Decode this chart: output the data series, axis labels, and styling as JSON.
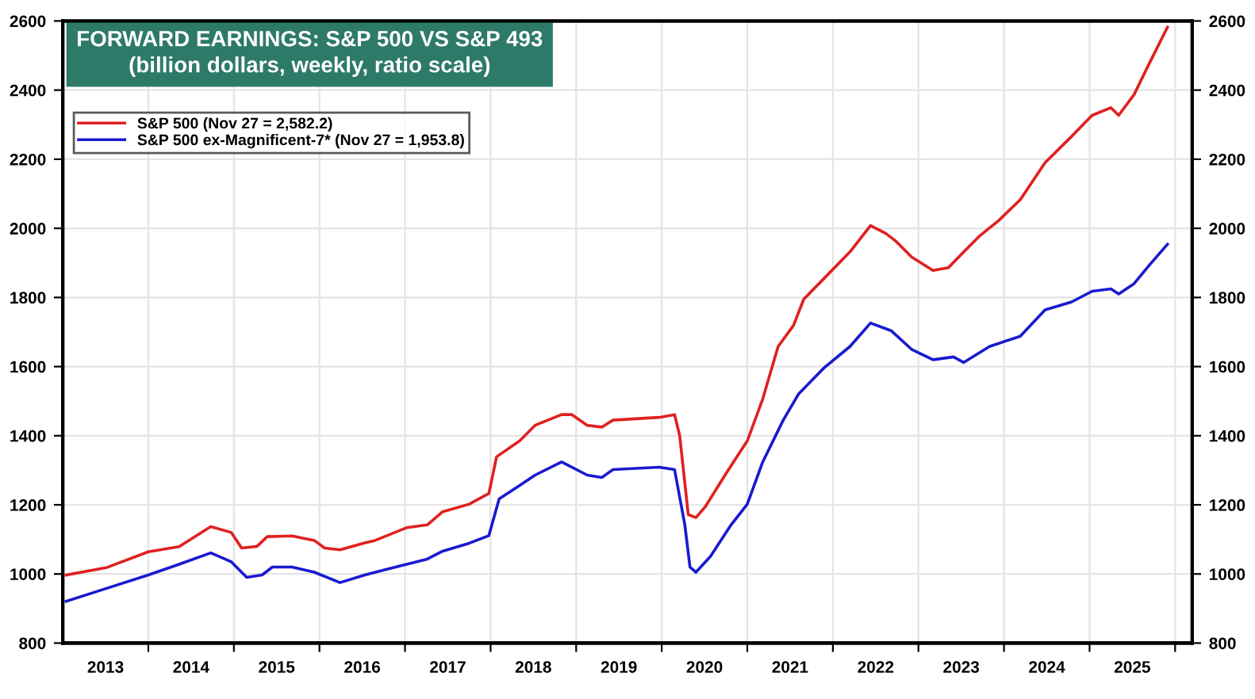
{
  "chart_data": {
    "type": "line",
    "title": "FORWARD EARNINGS: S&P 500 VS S&P 493",
    "subtitle": "(billion dollars, weekly, ratio scale)",
    "series": [
      {
        "name": "S&P 500 (Nov 27 = 2,582.2)",
        "color": "#e02020",
        "x": [
          2013.04,
          2013.52,
          2014.0,
          2014.36,
          2014.73,
          2014.97,
          2015.09,
          2015.27,
          2015.39,
          2015.68,
          2015.94,
          2016.06,
          2016.24,
          2016.53,
          2016.65,
          2017.02,
          2017.26,
          2017.44,
          2017.75,
          2017.98,
          2018.07,
          2018.34,
          2018.52,
          2018.83,
          2018.95,
          2019.13,
          2019.3,
          2019.43,
          2019.97,
          2020.15,
          2020.21,
          2020.31,
          2020.4,
          2020.51,
          2020.76,
          2021.0,
          2021.18,
          2021.36,
          2021.54,
          2021.66,
          2021.96,
          2022.2,
          2022.44,
          2022.62,
          2022.74,
          2022.92,
          2023.17,
          2023.35,
          2023.53,
          2023.71,
          2023.94,
          2024.19,
          2024.48,
          2024.79,
          2025.03,
          2025.25,
          2025.34,
          2025.52,
          2025.7,
          2025.91
        ],
        "values": [
          997,
          1019,
          1064,
          1079,
          1137,
          1120,
          1075,
          1080,
          1108,
          1110,
          1097,
          1075,
          1070,
          1090,
          1097,
          1134,
          1142,
          1180,
          1202,
          1233,
          1339,
          1385,
          1430,
          1461,
          1461,
          1430,
          1425,
          1445,
          1453,
          1461,
          1400,
          1172,
          1163,
          1195,
          1294,
          1385,
          1506,
          1658,
          1719,
          1795,
          1871,
          1932,
          2008,
          1985,
          1962,
          1917,
          1878,
          1886,
          1932,
          1977,
          2023,
          2083,
          2190,
          2266,
          2327,
          2349,
          2327,
          2387,
          2478,
          2582
        ]
      },
      {
        "name": "S&P 500 ex-Magnificent-7* (Nov 27 = 1,953.8)",
        "color": "#1a1ad0",
        "x": [
          2013.04,
          2013.52,
          2014.0,
          2014.36,
          2014.73,
          2014.97,
          2015.15,
          2015.33,
          2015.45,
          2015.68,
          2015.94,
          2016.24,
          2016.53,
          2016.78,
          2017.02,
          2017.26,
          2017.44,
          2017.75,
          2017.98,
          2018.1,
          2018.34,
          2018.52,
          2018.83,
          2019.13,
          2019.3,
          2019.43,
          2019.97,
          2020.15,
          2020.27,
          2020.33,
          2020.4,
          2020.57,
          2020.81,
          2021.0,
          2021.18,
          2021.42,
          2021.6,
          2021.9,
          2022.2,
          2022.44,
          2022.68,
          2022.92,
          2023.17,
          2023.41,
          2023.53,
          2023.83,
          2024.19,
          2024.48,
          2024.79,
          2025.03,
          2025.25,
          2025.34,
          2025.52,
          2025.7,
          2025.91
        ],
        "values": [
          921,
          959,
          997,
          1028,
          1061,
          1035,
          990,
          997,
          1020,
          1020,
          1005,
          975,
          997,
          1013,
          1028,
          1043,
          1066,
          1089,
          1111,
          1217,
          1256,
          1286,
          1324,
          1286,
          1279,
          1302,
          1309,
          1302,
          1142,
          1020,
          1005,
          1051,
          1142,
          1202,
          1324,
          1445,
          1521,
          1597,
          1658,
          1726,
          1704,
          1650,
          1620,
          1628,
          1612,
          1658,
          1688,
          1764,
          1787,
          1818,
          1825,
          1810,
          1840,
          1894,
          1954
        ]
      }
    ],
    "xlim": [
      2013.0,
      2026.2
    ],
    "xticks": [
      {
        "value": 2014,
        "label": null
      },
      {
        "value": 2015,
        "label": null
      },
      {
        "value": 2016,
        "label": null
      },
      {
        "value": 2017,
        "label": null
      },
      {
        "value": 2018,
        "label": null
      },
      {
        "value": 2019,
        "label": null
      },
      {
        "value": 2020,
        "label": null
      },
      {
        "value": 2021,
        "label": null
      },
      {
        "value": 2022,
        "label": null
      },
      {
        "value": 2023,
        "label": null
      },
      {
        "value": 2024,
        "label": null
      },
      {
        "value": 2025,
        "label": null
      },
      {
        "value": 2026,
        "label": null
      },
      {
        "value": 2013.5,
        "label": "2013"
      },
      {
        "value": 2014.5,
        "label": "2014"
      },
      {
        "value": 2015.5,
        "label": "2015"
      },
      {
        "value": 2016.5,
        "label": "2016"
      },
      {
        "value": 2017.5,
        "label": "2017"
      },
      {
        "value": 2018.5,
        "label": "2018"
      },
      {
        "value": 2019.5,
        "label": "2019"
      },
      {
        "value": 2020.5,
        "label": "2020"
      },
      {
        "value": 2021.5,
        "label": "2021"
      },
      {
        "value": 2022.5,
        "label": "2022"
      },
      {
        "value": 2023.5,
        "label": "2023"
      },
      {
        "value": 2024.5,
        "label": "2024"
      },
      {
        "value": 2025.5,
        "label": "2025"
      }
    ],
    "ylim": [
      800,
      2600
    ],
    "yticks": [
      800,
      1000,
      1200,
      1400,
      1600,
      1800,
      2000,
      2200,
      2400,
      2600
    ],
    "y2lim": [
      800,
      2600
    ],
    "y2ticks": [
      800,
      1000,
      1200,
      1400,
      1600,
      1800,
      2000,
      2200,
      2400,
      2600
    ],
    "grid": true,
    "legend": "top left",
    "marker": "none",
    "line_style": "solid"
  }
}
